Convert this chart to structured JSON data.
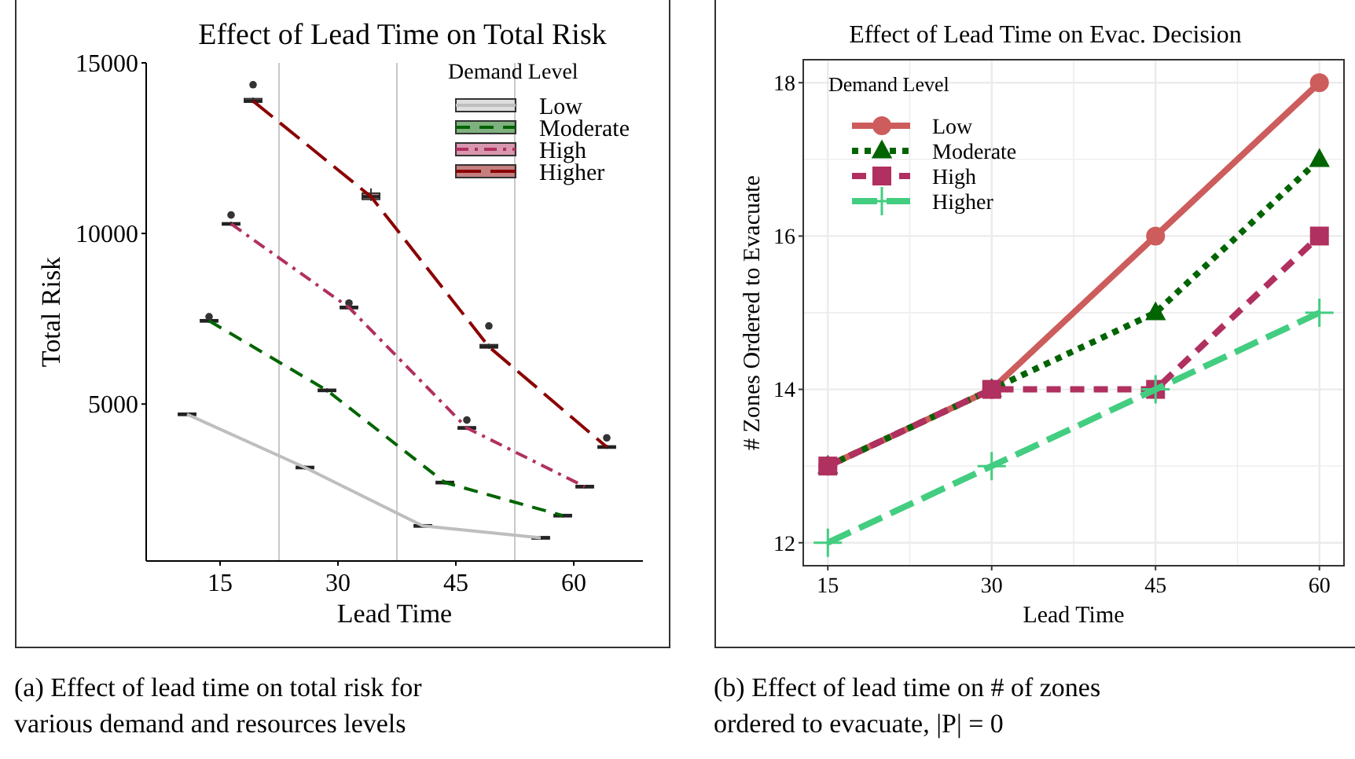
{
  "chart_data": [
    {
      "type": "box",
      "title": "Effect of Lead Time on Total Risk",
      "xlabel": "Lead Time",
      "ylabel": "Total Risk",
      "legend_title": "Demand Level",
      "xlim": [
        5.6,
        68.8
      ],
      "xticks": [
        15,
        {
          "value": 22.5,
          "label": null
        },
        30,
        {
          "value": 37.5,
          "label": null
        },
        45,
        {
          "value": 52.5,
          "label": null
        },
        60
      ],
      "ylim": [
        400,
        15000
      ],
      "yticks": [
        5000,
        10000,
        15000
      ],
      "grid": "x",
      "legend": "top right",
      "series": [
        {
          "name": "Low",
          "color": "#bebebe",
          "x": [
            10.8,
            25.8,
            40.8,
            55.8
          ],
          "boxes": [
            {
              "low": 4650,
              "q1": 4670,
              "median": 4700,
              "q3": 4730,
              "high": 4750
            },
            {
              "low": 3080,
              "q1": 3110,
              "median": 3140,
              "q3": 3170,
              "high": 3200
            },
            {
              "low": 1380,
              "q1": 1400,
              "median": 1430,
              "q3": 1460,
              "high": 1480
            },
            {
              "low": 1030,
              "q1": 1050,
              "median": 1080,
              "q3": 1110,
              "high": 1130
            }
          ]
        },
        {
          "name": "Moderate",
          "color": "#006400",
          "x": [
            13.6,
            28.6,
            43.6,
            58.6
          ],
          "boxes": [
            {
              "low": 7380,
              "q1": 7410,
              "median": 7440,
              "q3": 7470,
              "high": 7500,
              "outliers": [
                7560
              ]
            },
            {
              "low": 5340,
              "q1": 5370,
              "median": 5400,
              "q3": 5430,
              "high": 5460
            },
            {
              "low": 2640,
              "q1": 2670,
              "median": 2700,
              "q3": 2730,
              "high": 2760
            },
            {
              "low": 1680,
              "q1": 1700,
              "median": 1730,
              "q3": 1760,
              "high": 1780
            }
          ]
        },
        {
          "name": "High",
          "color": "#b03060",
          "x": [
            16.4,
            31.4,
            46.4,
            61.4
          ],
          "boxes": [
            {
              "low": 10220,
              "q1": 10250,
              "median": 10280,
              "q3": 10310,
              "high": 10340,
              "outliers": [
                10540
              ]
            },
            {
              "low": 7770,
              "q1": 7800,
              "median": 7830,
              "q3": 7860,
              "high": 7890,
              "outliers": [
                7960
              ]
            },
            {
              "low": 4240,
              "q1": 4270,
              "median": 4300,
              "q3": 4330,
              "high": 4360,
              "outliers": [
                4530
              ]
            },
            {
              "low": 2530,
              "q1": 2550,
              "median": 2580,
              "q3": 2610,
              "high": 2630
            }
          ]
        },
        {
          "name": "Higher",
          "color": "#8b0000",
          "x": [
            19.2,
            34.2,
            49.2,
            64.2
          ],
          "boxes": [
            {
              "low": 13820,
              "q1": 13850,
              "median": 13880,
              "q3": 13950,
              "high": 13980,
              "outliers": [
                14360
              ]
            },
            {
              "low": 10950,
              "q1": 11000,
              "median": 11080,
              "q3": 11180,
              "high": 11320
            },
            {
              "low": 6620,
              "q1": 6650,
              "median": 6680,
              "q3": 6740,
              "high": 6770,
              "outliers": [
                7290
              ]
            },
            {
              "low": 3690,
              "q1": 3710,
              "median": 3740,
              "q3": 3770,
              "high": 3800,
              "outliers": [
                4010
              ]
            }
          ]
        },
        {
          "type": "line",
          "color": "#bebebe",
          "line_style": "solid",
          "x": [
            10.8,
            25.8,
            40.8,
            55.8
          ],
          "values": [
            4700,
            3140,
            1430,
            1080
          ]
        },
        {
          "type": "line",
          "color": "#006400",
          "line_style": "dashed",
          "x": [
            13.6,
            28.6,
            43.6,
            58.6
          ],
          "values": [
            7440,
            5400,
            2700,
            1730
          ]
        },
        {
          "type": "line",
          "color": "#b03060",
          "line_style": "dashdot",
          "x": [
            16.4,
            31.4,
            46.4,
            61.4
          ],
          "values": [
            10280,
            7830,
            4300,
            2580
          ]
        },
        {
          "type": "line",
          "color": "#8b0000",
          "line_style": "longdash",
          "x": [
            19.2,
            34.2,
            49.2,
            64.2
          ],
          "values": [
            13880,
            11080,
            6680,
            3740
          ]
        }
      ],
      "annotations": [
        "(a) Effect of lead time on total risk for various demand and resources levels"
      ]
    },
    {
      "type": "line",
      "title": "Effect of Lead Time on Evac. Decision",
      "xlabel": "Lead Time",
      "ylabel": "# Zones Ordered to Evacuate",
      "legend_title": "Demand Level",
      "x": [
        15,
        30,
        45,
        60
      ],
      "xlim": [
        12.75,
        62.25
      ],
      "xticks": [
        15,
        {
          "value": 22.5,
          "label": null
        },
        30,
        {
          "value": 37.5,
          "label": null
        },
        45,
        {
          "value": 52.5,
          "label": null
        },
        60
      ],
      "ylim": [
        11.7,
        18.3
      ],
      "yticks": [
        12,
        {
          "value": 13,
          "label": null
        },
        14,
        {
          "value": 15,
          "label": null
        },
        16,
        {
          "value": 17,
          "label": null
        },
        18
      ],
      "grid": true,
      "legend": "top left",
      "series": [
        {
          "name": "Low",
          "color": "#cd5c5c",
          "marker": "circle",
          "line_style": "solid",
          "values": [
            13,
            14,
            16,
            18
          ]
        },
        {
          "name": "Moderate",
          "color": "#006400",
          "marker": "triangle",
          "line_style": "dotted",
          "values": [
            13,
            14,
            15,
            17
          ]
        },
        {
          "name": "High",
          "color": "#b03060",
          "marker": "square",
          "line_style": "dashed",
          "values": [
            13,
            14,
            14,
            16
          ]
        },
        {
          "name": "Higher",
          "color": "#43cd80",
          "marker": "cross",
          "line_style": "longdash",
          "values": [
            12,
            13,
            14,
            15
          ]
        }
      ],
      "annotations": [
        "(b) Effect of lead time on # of zones ordered to evacuate, |P| = 0"
      ]
    }
  ]
}
